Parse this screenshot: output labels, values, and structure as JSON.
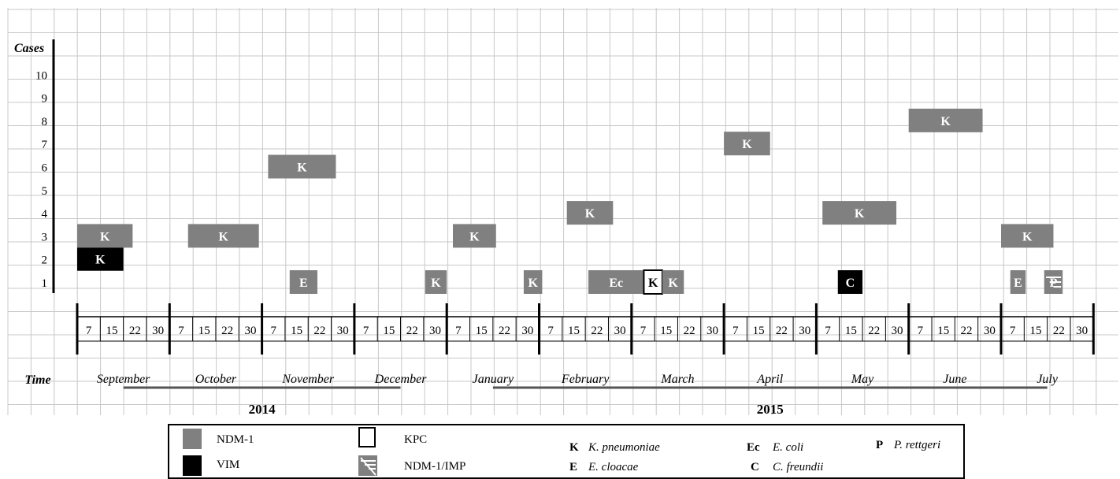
{
  "chart_data": {
    "type": "timeline",
    "y_axis_label": "Cases",
    "y_ticks": [
      1,
      2,
      3,
      4,
      5,
      6,
      7,
      8,
      9,
      10
    ],
    "x_axis_label": "Time",
    "day_ticks": [
      "7",
      "15",
      "22",
      "30"
    ],
    "months": [
      "September",
      "October",
      "November",
      "December",
      "January",
      "February",
      "March",
      "April",
      "May",
      "June",
      "July"
    ],
    "years": [
      {
        "label": "2014",
        "first_month": 0,
        "last_month": 3
      },
      {
        "label": "2015",
        "first_month": 4,
        "last_month": 10
      }
    ],
    "cases": [
      {
        "case": 1,
        "label": "K",
        "type": "VIM",
        "start": "2014-09-01",
        "end": "2014-09-16",
        "y": 2
      },
      {
        "case": 2,
        "label": "K",
        "type": "NDM-1",
        "start": "2014-09-01",
        "end": "2014-09-19",
        "y": 3
      },
      {
        "case": 3,
        "label": "K",
        "type": "NDM-1",
        "start": "2014-10-07",
        "end": "2014-10-30",
        "y": 3
      },
      {
        "case": 4,
        "label": "K",
        "type": "NDM-1",
        "start": "2014-11-03",
        "end": "2014-11-25",
        "y": 6
      },
      {
        "case": 5,
        "label": "E",
        "type": "NDM-1",
        "start": "2014-11-10",
        "end": "2014-11-19",
        "y": 1
      },
      {
        "case": 6,
        "label": "K",
        "type": "NDM-1",
        "start": "2014-12-24",
        "end": "2014-12-31",
        "y": 1
      },
      {
        "case": 7,
        "label": "K",
        "type": "NDM-1",
        "start": "2015-01-03",
        "end": "2015-01-17",
        "y": 3
      },
      {
        "case": 8,
        "label": "K",
        "type": "NDM-1",
        "start": "2015-01-26",
        "end": "2015-02-02",
        "y": 1
      },
      {
        "case": 9,
        "label": "K",
        "type": "NDM-1",
        "start": "2015-02-10",
        "end": "2015-02-25",
        "y": 4
      },
      {
        "case": 10,
        "label": "Ec",
        "type": "NDM-1",
        "start": "2015-02-17",
        "end": "2015-03-05",
        "y": 1
      },
      {
        "case": 11,
        "label": "K",
        "type": "KPC",
        "start": "2015-03-05",
        "end": "2015-03-11",
        "y": 1
      },
      {
        "case": 12,
        "label": "K",
        "type": "NDM-1",
        "start": "2015-03-11",
        "end": "2015-03-18",
        "y": 1
      },
      {
        "case": 13,
        "label": "K",
        "type": "NDM-1",
        "start": "2015-04-01",
        "end": "2015-04-16",
        "y": 7
      },
      {
        "case": 14,
        "label": "K",
        "type": "NDM-1",
        "start": "2015-05-03",
        "end": "2015-05-27",
        "y": 4
      },
      {
        "case": 15,
        "label": "C",
        "type": "VIM",
        "start": "2015-05-08",
        "end": "2015-05-16",
        "y": 1
      },
      {
        "case": 16,
        "label": "K",
        "type": "NDM-1",
        "start": "2015-06-01",
        "end": "2015-06-25",
        "y": 8
      },
      {
        "case": 17,
        "label": "K",
        "type": "NDM-1",
        "start": "2015-07-01",
        "end": "2015-07-18",
        "y": 3
      },
      {
        "case": 18,
        "label": "E",
        "type": "NDM-1",
        "start": "2015-07-04",
        "end": "2015-07-09",
        "y": 1
      },
      {
        "case": 19,
        "label": "P",
        "type": "NDM-1/IMP",
        "start": "2015-07-15",
        "end": "2015-07-21",
        "y": 1
      }
    ],
    "resistance_legend": [
      {
        "code": "NDM-1",
        "label": "NDM-1",
        "color": "#808080"
      },
      {
        "code": "VIM",
        "label": "VIM",
        "color": "#000000"
      },
      {
        "code": "KPC",
        "label": "KPC",
        "color": "#ffffff"
      },
      {
        "code": "NDM-1/IMP",
        "label": "NDM-1/IMP",
        "color": "#808080"
      }
    ],
    "organism_legend": [
      {
        "abbr": "K",
        "name": "K. pneumoniae"
      },
      {
        "abbr": "E",
        "name": "E. cloacae"
      },
      {
        "abbr": "Ec",
        "name": "E. coli"
      },
      {
        "abbr": "C",
        "name": "C. freundii"
      },
      {
        "abbr": "P",
        "name": "P. rettgeri"
      }
    ],
    "grid": true
  }
}
